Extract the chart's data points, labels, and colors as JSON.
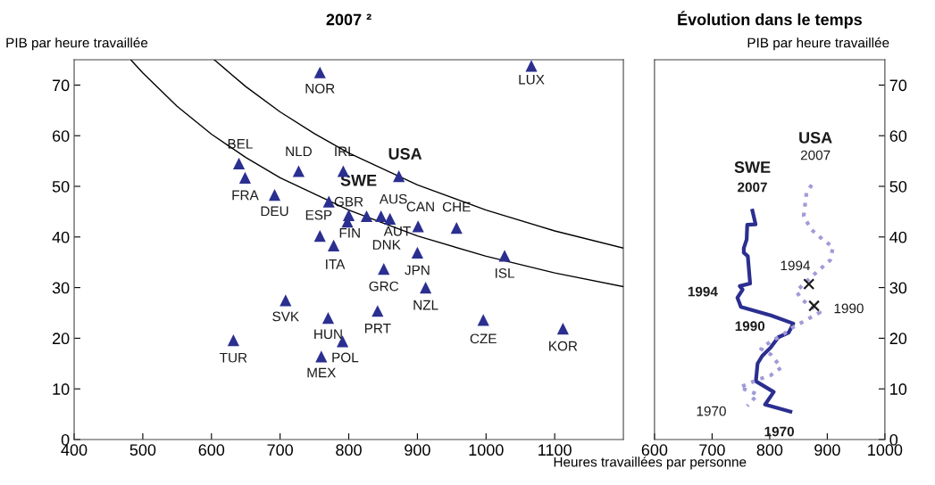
{
  "chart_data": [
    {
      "type": "scatter",
      "title": "2007 ²",
      "ylabel": "PIB par heure travaillée",
      "xlim": [
        400,
        1200
      ],
      "ylim": [
        0,
        75
      ],
      "xticks": [
        400,
        500,
        600,
        700,
        800,
        900,
        1000,
        1100
      ],
      "yticks": [
        0,
        10,
        20,
        30,
        40,
        50,
        60,
        70
      ],
      "grid": false,
      "legend": false,
      "marker": "triangle",
      "series": [
        {
          "color": "#2b2f8f",
          "value_labels": [
            "NOR",
            "LUX",
            "BEL",
            "FRA",
            "NLD",
            "IRL",
            "DEU",
            "GBR",
            "FIN",
            "DNK",
            "AUS",
            "AUT",
            "CAN",
            "CHE",
            "ESP",
            "ITA",
            "JPN",
            "ISL",
            "GRC",
            "NZL",
            "SVK",
            "PRT",
            "CZE",
            "KOR",
            "HUN",
            "TUR",
            "POL",
            "MEX"
          ],
          "x": [
            758,
            1066,
            640,
            649,
            727,
            792,
            692,
            800,
            798,
            826,
            847,
            860,
            901,
            957,
            758,
            778,
            900,
            1027,
            851,
            912,
            708,
            842,
            996,
            1112,
            770,
            632,
            791,
            760
          ],
          "values": [
            72.5,
            73.8,
            54.5,
            51.7,
            53,
            53,
            48.3,
            44.3,
            43,
            44.1,
            44.1,
            43.6,
            42.1,
            41.8,
            40.2,
            38.3,
            36.9,
            36.3,
            33.7,
            30,
            27.5,
            25.4,
            23.6,
            21.9,
            24,
            19.6,
            19.4,
            16.4
          ]
        },
        {
          "name": "USA",
          "color": "#2b2f8f",
          "x": [
            873
          ],
          "values": [
            52
          ]
        },
        {
          "name": "SWE",
          "color": "#2b2f8f",
          "x": [
            771
          ],
          "values": [
            47
          ]
        },
        {
          "type": "line",
          "color": "#000000",
          "marker": "none",
          "x": [
            483,
            500,
            550,
            600,
            650,
            700,
            800,
            900,
            1000,
            1100,
            1200
          ],
          "values": [
            74.9,
            72.4,
            65.8,
            60.3,
            55.7,
            51.7,
            45.3,
            40.2,
            36.2,
            32.9,
            30.2
          ]
        },
        {
          "type": "line",
          "color": "#000000",
          "marker": "none",
          "x": [
            604,
            650,
            700,
            750,
            800,
            900,
            1000,
            1100,
            1200
          ],
          "values": [
            75,
            69.7,
            64.7,
            60.4,
            56.6,
            50.3,
            45.3,
            41.2,
            37.8
          ]
        }
      ]
    },
    {
      "type": "line",
      "title": "Évolution dans le temps",
      "ylabel": "PIB par heure travaillée",
      "xlabel": "Heures travaillées par personne",
      "xlim": [
        600,
        1000
      ],
      "ylim": [
        0,
        75
      ],
      "xticks": [
        600,
        700,
        800,
        900,
        1000
      ],
      "yticks": [
        0,
        10,
        20,
        30,
        40,
        50,
        60,
        70
      ],
      "grid": false,
      "legend": false,
      "marker": "none",
      "series": [
        {
          "name": "SWE",
          "color": "#2b2f8f",
          "line_style": "solid",
          "x": [
            770,
            775.5,
            761,
            760,
            755,
            755,
            762,
            766,
            748,
            753,
            744,
            750,
            802,
            841,
            833,
            815,
            802,
            787,
            779,
            776,
            807,
            792,
            836
          ],
          "values": [
            45.2,
            42.5,
            42.4,
            39.5,
            37.8,
            36.9,
            36.2,
            30.8,
            30.3,
            29.6,
            28,
            26.2,
            24.5,
            22.9,
            21.1,
            20.2,
            18.2,
            16.5,
            15,
            11.5,
            9.4,
            6.9,
            5.5
          ]
        },
        {
          "name": "USA",
          "color": "#a09bd8",
          "line_style": "dotted",
          "x": [
            873,
            864,
            859,
            872,
            892,
            910,
            905,
            879,
            846,
            856,
            887,
            838,
            822,
            802,
            785,
            802,
            820,
            802,
            779,
            748,
            779,
            761
          ],
          "values": [
            50.3,
            48.8,
            44.1,
            41.5,
            39.5,
            38,
            35.4,
            32.8,
            29.3,
            27.6,
            25.1,
            22,
            20.6,
            19.4,
            17.9,
            16.8,
            14.2,
            12.7,
            11.8,
            10.3,
            8.9,
            6.6
          ]
        },
        {
          "type": "scatter",
          "marker": "cross",
          "color": "#1a1a1a",
          "x": [
            868,
            877
          ],
          "values": [
            30.7,
            26.4
          ]
        }
      ],
      "annotations": [
        {
          "text": "2007",
          "x": 770,
          "y": 45.2
        },
        {
          "text": "2007",
          "x": 873,
          "y": 50.3
        },
        {
          "text": "1994",
          "x": 744,
          "y": 28
        },
        {
          "text": "1990",
          "x": 841,
          "y": 22.9
        },
        {
          "text": "1970",
          "x": 836,
          "y": 5.5
        },
        {
          "text": "1970",
          "x": 761,
          "y": 6.6
        },
        {
          "text": "1994",
          "x": 868,
          "y": 30.7
        },
        {
          "text": "1990",
          "x": 877,
          "y": 26.4
        }
      ]
    }
  ]
}
